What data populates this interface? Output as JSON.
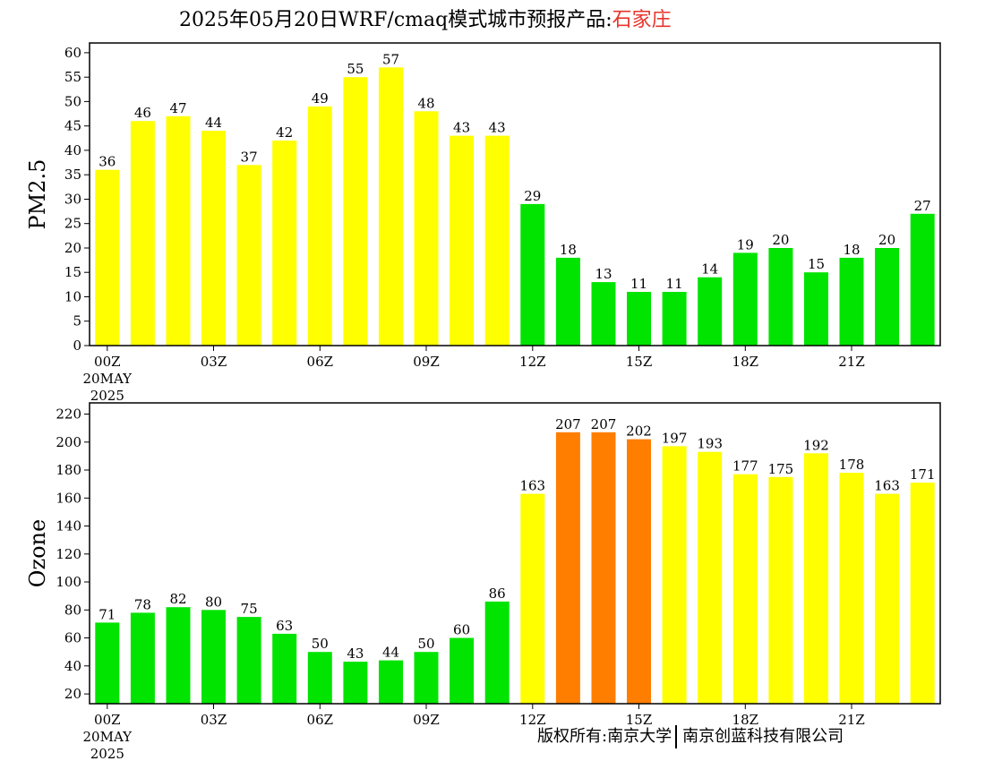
{
  "title": {
    "prefix": "2025年05月20日WRF/cmaq模式城市预报产品:",
    "city": "石家庄"
  },
  "footer": {
    "left": "版权所有:南京大学",
    "right": "南京创蓝科技有限公司"
  },
  "colors": {
    "good": "#00e400",
    "moderate": "#ffff00",
    "unhealthy_sensitive": "#ff7e00",
    "title_city": "#e8342c"
  },
  "chart_data": [
    {
      "type": "bar",
      "ylabel": "PM2.5",
      "ylim": [
        0,
        62
      ],
      "yticks": [
        0,
        5,
        10,
        15,
        20,
        25,
        30,
        35,
        40,
        45,
        50,
        55,
        60
      ],
      "x_tick_labels": [
        {
          "index": 0,
          "label": "00Z",
          "date": "20MAY",
          "year": "2025"
        },
        {
          "index": 3,
          "label": "03Z"
        },
        {
          "index": 6,
          "label": "06Z"
        },
        {
          "index": 9,
          "label": "09Z"
        },
        {
          "index": 12,
          "label": "12Z"
        },
        {
          "index": 15,
          "label": "15Z"
        },
        {
          "index": 18,
          "label": "18Z"
        },
        {
          "index": 21,
          "label": "21Z"
        }
      ],
      "values": [
        36,
        46,
        47,
        44,
        37,
        42,
        49,
        55,
        57,
        48,
        43,
        43,
        29,
        18,
        13,
        11,
        11,
        14,
        19,
        20,
        15,
        18,
        20,
        27
      ],
      "bar_colors": [
        "#ffff00",
        "#ffff00",
        "#ffff00",
        "#ffff00",
        "#ffff00",
        "#ffff00",
        "#ffff00",
        "#ffff00",
        "#ffff00",
        "#ffff00",
        "#ffff00",
        "#ffff00",
        "#00e400",
        "#00e400",
        "#00e400",
        "#00e400",
        "#00e400",
        "#00e400",
        "#00e400",
        "#00e400",
        "#00e400",
        "#00e400",
        "#00e400",
        "#00e400"
      ]
    },
    {
      "type": "bar",
      "ylabel": "Ozone",
      "ylim": [
        13,
        228
      ],
      "yticks": [
        20,
        40,
        60,
        80,
        100,
        120,
        140,
        160,
        180,
        200,
        220
      ],
      "x_tick_labels": [
        {
          "index": 0,
          "label": "00Z",
          "date": "20MAY",
          "year": "2025"
        },
        {
          "index": 3,
          "label": "03Z"
        },
        {
          "index": 6,
          "label": "06Z"
        },
        {
          "index": 9,
          "label": "09Z"
        },
        {
          "index": 12,
          "label": "12Z"
        },
        {
          "index": 15,
          "label": "15Z"
        },
        {
          "index": 18,
          "label": "18Z"
        },
        {
          "index": 21,
          "label": "21Z"
        }
      ],
      "values": [
        71,
        78,
        82,
        80,
        75,
        63,
        50,
        43,
        44,
        50,
        60,
        86,
        163,
        207,
        207,
        202,
        197,
        193,
        177,
        175,
        192,
        178,
        163,
        171
      ],
      "bar_colors": [
        "#00e400",
        "#00e400",
        "#00e400",
        "#00e400",
        "#00e400",
        "#00e400",
        "#00e400",
        "#00e400",
        "#00e400",
        "#00e400",
        "#00e400",
        "#00e400",
        "#ffff00",
        "#ff7e00",
        "#ff7e00",
        "#ff7e00",
        "#ffff00",
        "#ffff00",
        "#ffff00",
        "#ffff00",
        "#ffff00",
        "#ffff00",
        "#ffff00",
        "#ffff00"
      ]
    }
  ]
}
